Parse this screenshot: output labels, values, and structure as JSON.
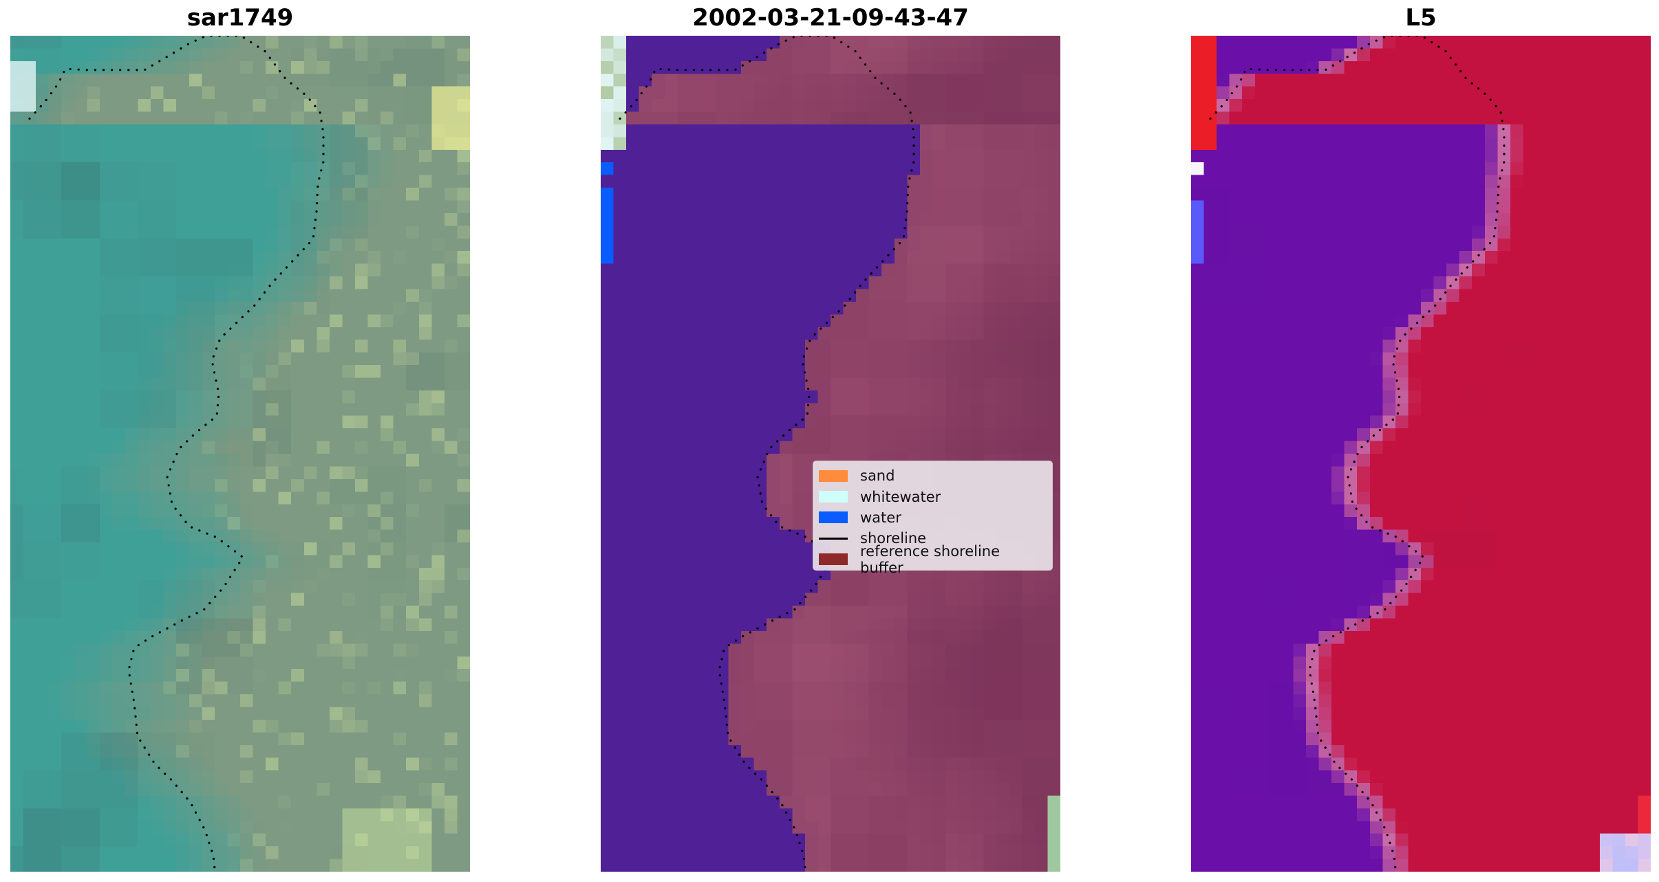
{
  "panels": [
    {
      "title": "sar1749"
    },
    {
      "title": "2002-03-21-09-43-47"
    },
    {
      "title": "L5"
    }
  ],
  "legend": {
    "items": [
      {
        "label": "sand",
        "type": "swatch",
        "color": "#ff8c3c"
      },
      {
        "label": "whitewater",
        "type": "swatch",
        "color": "#cffff8"
      },
      {
        "label": "water",
        "type": "swatch",
        "color": "#0a5cff"
      },
      {
        "label": "shoreline",
        "type": "line",
        "color": "#000000"
      },
      {
        "label": "reference shoreline buffer",
        "type": "swatch",
        "color": "#8e2a2a"
      }
    ]
  },
  "colors": {
    "classified_water_area": "#4f2096",
    "classified_land": "#8a3f63",
    "index_water": "#6a10a8",
    "index_land": "#c41240",
    "rgb_water": "#3fa098",
    "rgb_land": "#7e9a82"
  }
}
